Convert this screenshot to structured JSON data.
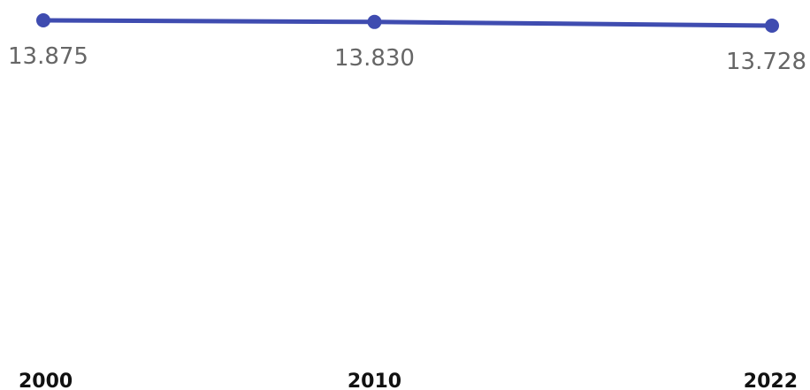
{
  "chart_data": {
    "type": "line",
    "categories": [
      "2000",
      "2010",
      "2022"
    ],
    "x": [
      2000,
      2010,
      2022
    ],
    "series": [
      {
        "values": [
          13.875,
          13.83,
          13.728
        ],
        "data_labels": [
          "13.875",
          "13.830",
          "13.728"
        ]
      }
    ],
    "title": "",
    "xlabel": "",
    "ylabel": "",
    "grid": false,
    "legend": "none",
    "colors": {
      "line": "#3f4cb0",
      "point": "#3f4cb0",
      "data_label": "#666666",
      "tick_label": "#111111"
    }
  }
}
